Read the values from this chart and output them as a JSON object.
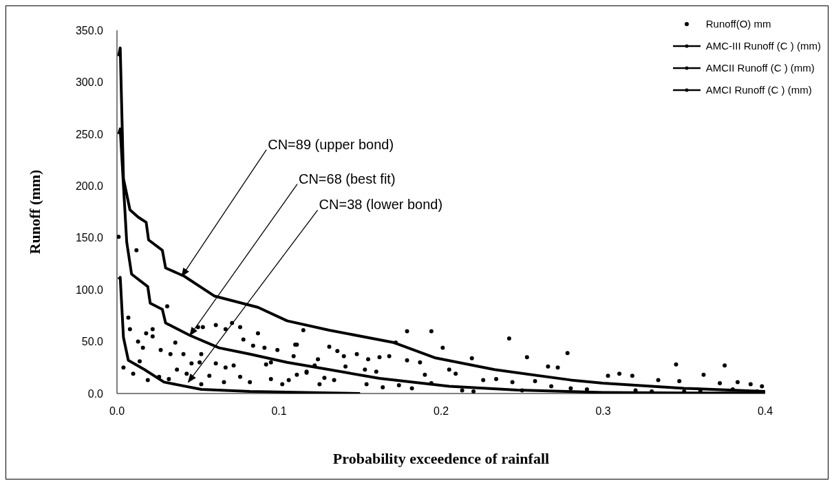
{
  "chart_data": {
    "type": "line",
    "xlabel": "Probability exceedence of rainfall",
    "ylabel": "Runoff (mm)",
    "xlim": [
      0,
      0.4
    ],
    "ylim": [
      0,
      350
    ],
    "xticks": [
      {
        "value": 0,
        "label": "0.0"
      },
      {
        "value": 0.1,
        "label": "0.1"
      },
      {
        "value": 0.2,
        "label": "0.2"
      },
      {
        "value": 0.3,
        "label": "0.3"
      },
      {
        "value": 0.4,
        "label": "0.4"
      }
    ],
    "yticks": [
      {
        "value": 0,
        "label": "0.0"
      },
      {
        "value": 50,
        "label": "50.0"
      },
      {
        "value": 100,
        "label": "100.0"
      },
      {
        "value": 150,
        "label": "150.0"
      },
      {
        "value": 200,
        "label": "200.0"
      },
      {
        "value": 250,
        "label": "250.0"
      },
      {
        "value": 300,
        "label": "300.0"
      },
      {
        "value": 350,
        "label": "350.0"
      }
    ],
    "legend": "top right",
    "series": [
      {
        "name": "Runoff(O) mm",
        "type": "scatter",
        "color": "#000000",
        "x": [
          0.001,
          0.012,
          0.031,
          0.007,
          0.008,
          0.018,
          0.022,
          0.013,
          0.022,
          0.016,
          0.027,
          0.033,
          0.041,
          0.036,
          0.05,
          0.053,
          0.061,
          0.067,
          0.071,
          0.076,
          0.087,
          0.078,
          0.084,
          0.091,
          0.099,
          0.11,
          0.115,
          0.052,
          0.051,
          0.061,
          0.037,
          0.043,
          0.046,
          0.057,
          0.067,
          0.072,
          0.076,
          0.092,
          0.095,
          0.095,
          0.106,
          0.117,
          0.122,
          0.004,
          0.01,
          0.019,
          0.014,
          0.026,
          0.032,
          0.082,
          0.102,
          0.128,
          0.125,
          0.066,
          0.052,
          0.179,
          0.194,
          0.242,
          0.278,
          0.201,
          0.219,
          0.253,
          0.172,
          0.111,
          0.131,
          0.136,
          0.14,
          0.148,
          0.155,
          0.162,
          0.168,
          0.179,
          0.187,
          0.19,
          0.205,
          0.209,
          0.226,
          0.234,
          0.266,
          0.272,
          0.258,
          0.109,
          0.124,
          0.141,
          0.153,
          0.16,
          0.117,
          0.111,
          0.134,
          0.154,
          0.164,
          0.174,
          0.182,
          0.194,
          0.213,
          0.244,
          0.268,
          0.345,
          0.375,
          0.362,
          0.303,
          0.31,
          0.318,
          0.334,
          0.347,
          0.372,
          0.383,
          0.391,
          0.398,
          0.29,
          0.32,
          0.35,
          0.38,
          0.25,
          0.22,
          0.28,
          0.33,
          0.36,
          0.395
        ],
        "values": [
          151,
          138,
          84,
          73,
          62,
          58,
          62,
          50,
          55,
          44,
          42,
          38,
          38,
          49,
          64,
          64,
          66,
          62,
          68,
          64,
          58,
          52,
          46,
          44,
          42,
          47,
          61,
          38,
          30,
          29,
          23,
          19,
          29,
          17,
          25,
          27,
          16,
          28,
          30,
          14,
          13,
          21,
          27,
          25,
          19,
          13,
          31,
          16,
          14,
          11,
          9,
          15,
          9,
          11,
          9,
          60,
          60,
          53,
          39,
          44,
          34,
          35,
          49,
          47,
          45,
          41,
          36,
          38,
          33,
          35,
          36,
          32,
          30,
          18,
          23,
          19,
          13,
          14,
          26,
          25,
          12,
          36,
          33,
          26,
          23,
          21,
          20,
          18,
          13,
          9,
          6,
          8,
          5,
          10,
          3,
          11,
          7,
          28,
          27,
          18,
          17,
          19,
          17,
          13,
          12,
          10,
          11,
          9,
          7,
          4,
          3,
          2,
          4,
          3,
          2,
          5,
          2,
          3,
          2
        ]
      },
      {
        "name": "AMC-III Runoff (C ) (mm)",
        "color": "#000000",
        "x": [
          0.001,
          0.002,
          0.004,
          0.008,
          0.013,
          0.018,
          0.0195,
          0.028,
          0.03,
          0.0415,
          0.06,
          0.087,
          0.105,
          0.131,
          0.171,
          0.196,
          0.233,
          0.28,
          0.3,
          0.35,
          0.4
        ],
        "values": [
          325,
          333,
          207,
          177,
          170,
          165,
          148,
          138,
          121,
          113,
          94,
          83,
          70,
          61,
          49,
          34.5,
          23,
          13,
          10,
          5,
          2
        ]
      },
      {
        "name": "AMCII Runoff (C ) (mm)",
        "color": "#000000",
        "x": [
          0.001,
          0.002,
          0.006,
          0.009,
          0.019,
          0.0205,
          0.028,
          0.03,
          0.045,
          0.063,
          0.082,
          0.105,
          0.131,
          0.162,
          0.205,
          0.247,
          0.3,
          0.35,
          0.4
        ],
        "values": [
          250,
          255,
          146,
          115,
          103,
          87,
          81,
          68,
          56,
          44,
          38,
          30,
          23,
          14.6,
          7,
          3.3,
          1,
          0.5,
          0.5
        ]
      },
      {
        "name": "AMCI Runoff (C ) (mm)",
        "color": "#000000",
        "x": [
          0.001,
          0.002,
          0.004,
          0.007,
          0.017,
          0.029,
          0.052,
          0.082,
          0.15
        ],
        "values": [
          110,
          112,
          54,
          32,
          23,
          11,
          4,
          2,
          0
        ]
      }
    ],
    "annotations": [
      {
        "text": "CN=89 (upper bond)",
        "x": 0.04,
        "y": 113
      },
      {
        "text": "CN=68 (best fit)",
        "x": 0.045,
        "y": 56
      },
      {
        "text": "CN=38 (lower bond)",
        "x": 0.044,
        "y": 11
      }
    ]
  }
}
